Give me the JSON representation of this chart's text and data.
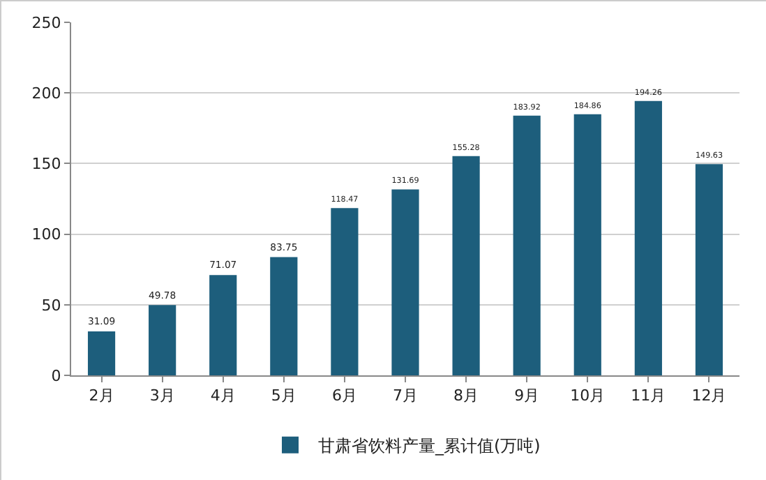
{
  "chart_data": {
    "type": "bar",
    "categories": [
      "2月",
      "3月",
      "4月",
      "5月",
      "6月",
      "7月",
      "8月",
      "9月",
      "10月",
      "11月",
      "12月"
    ],
    "series": [
      {
        "name": "甘肃省饮料产量_累计值(万吨)",
        "color": "#1d5e7c",
        "values": [
          31.09,
          49.78,
          71.07,
          83.75,
          118.47,
          131.69,
          155.28,
          183.92,
          184.86,
          194.26,
          149.63
        ]
      }
    ],
    "ylim": [
      0,
      250
    ],
    "yticks": [
      0,
      50,
      100,
      150,
      200,
      250
    ],
    "grid": "y",
    "legend": "bottom",
    "data_labels": true
  }
}
